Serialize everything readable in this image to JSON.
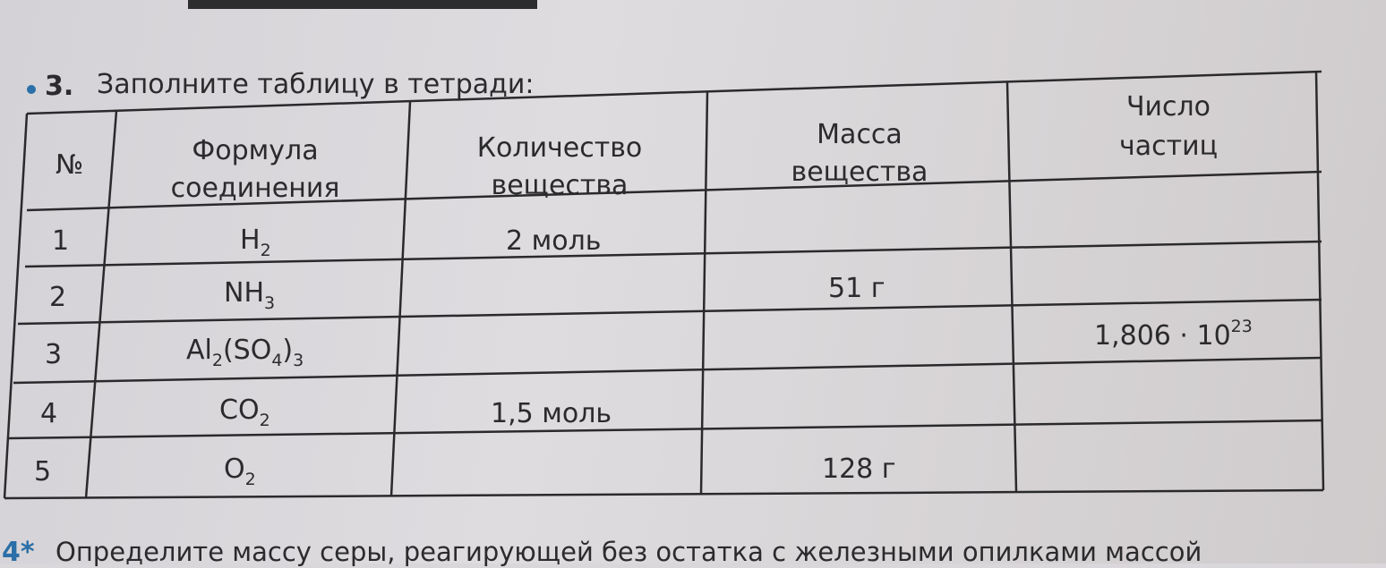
{
  "exercise": {
    "number": "3.",
    "title": "Заполните таблицу в тетради:",
    "headers": [
      "№",
      "Формула соединения",
      "Количество вещества",
      "Масса вещества",
      "Число частиц"
    ],
    "rows": [
      {
        "n": "1",
        "formula": "H",
        "sub1": "2",
        "amount": "2 моль",
        "mass": "",
        "particles": ""
      },
      {
        "n": "2",
        "formula": "NH",
        "sub1": "3",
        "amount": "",
        "mass": "51 г",
        "particles": ""
      },
      {
        "n": "3",
        "formula": "Al",
        "sub1": "2",
        "formula_mid": "(SO",
        "sub2": "4",
        "formula_end": ")",
        "sub3": "3",
        "amount": "",
        "mass": "",
        "particles": "1,806 · 10",
        "particles_exp": "23"
      },
      {
        "n": "4",
        "formula": "CO",
        "sub1": "2",
        "amount": "1,5 моль",
        "mass": "",
        "particles": ""
      },
      {
        "n": "5",
        "formula": "O",
        "sub1": "2",
        "amount": "",
        "mass": "128 г",
        "particles": ""
      }
    ]
  },
  "next_exercise": {
    "number": "4*",
    "text": "Определите массу серы, реагирующей без остатка с железными опилками массой"
  },
  "colors": {
    "paper": "#d9d7da",
    "ink": "#2b2a2c",
    "bullet": "#2b6fa8",
    "asterisk": "#2b6fa8"
  }
}
